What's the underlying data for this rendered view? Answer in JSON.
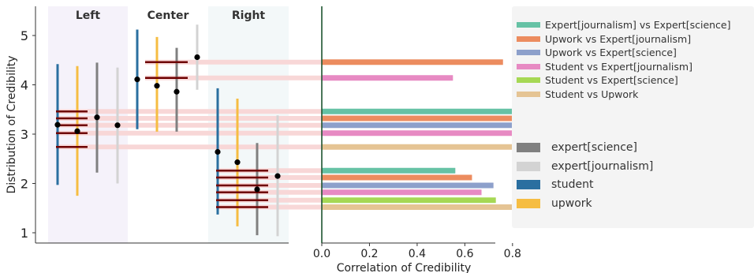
{
  "chart_data": {
    "left_panel": {
      "type": "range",
      "ylabel": "Distribution of Credibility",
      "yticks": [
        1,
        2,
        3,
        4,
        5
      ],
      "ylim": [
        0.8,
        5.4
      ],
      "groups": [
        {
          "label": "Left",
          "series": [
            {
              "name": "student",
              "min": 1.97,
              "max": 4.42,
              "mean": 3.19
            },
            {
              "name": "upwork",
              "min": 1.75,
              "max": 4.38,
              "mean": 3.06
            },
            {
              "name": "expert[science]",
              "min": 2.22,
              "max": 4.45,
              "mean": 3.34
            },
            {
              "name": "expert[journalism]",
              "min": 2.0,
              "max": 4.35,
              "mean": 3.18
            }
          ],
          "medians": [
            3.02,
            2.74,
            3.32,
            3.46,
            3.18
          ]
        },
        {
          "label": "Center",
          "series": [
            {
              "name": "student",
              "min": 3.1,
              "max": 5.12,
              "mean": 4.11
            },
            {
              "name": "upwork",
              "min": 3.05,
              "max": 4.97,
              "mean": 3.98
            },
            {
              "name": "expert[science]",
              "min": 3.05,
              "max": 4.75,
              "mean": 3.86
            },
            {
              "name": "expert[journalism]",
              "min": 3.9,
              "max": 5.22,
              "mean": 4.56
            }
          ],
          "medians": [
            4.46,
            4.14
          ]
        },
        {
          "label": "Right",
          "series": [
            {
              "name": "student",
              "min": 1.37,
              "max": 3.93,
              "mean": 2.64
            },
            {
              "name": "upwork",
              "min": 1.13,
              "max": 3.72,
              "mean": 2.43
            },
            {
              "name": "expert[science]",
              "min": 0.95,
              "max": 2.82,
              "mean": 1.88
            },
            {
              "name": "expert[journalism]",
              "min": 0.93,
              "max": 3.38,
              "mean": 2.15
            }
          ],
          "medians": [
            2.26,
            2.12,
            1.96,
            1.82,
            1.66,
            1.52
          ]
        }
      ]
    },
    "right_panel": {
      "type": "bar",
      "orientation": "horizontal",
      "xlabel": "Correlation of Credibility",
      "xticks": [
        0.0,
        0.2,
        0.4,
        0.6,
        0.8
      ],
      "xlim": [
        0.0,
        0.88
      ],
      "groups": [
        {
          "label": "Center",
          "bars": [
            {
              "name": "Upwork vs Expert[journalism]",
              "value": 0.76,
              "y": 4.46
            },
            {
              "name": "Student vs Expert[journalism]",
              "value": 0.55,
              "y": 4.14
            }
          ]
        },
        {
          "label": "Left",
          "bars": [
            {
              "name": "Expert[journalism] vs Expert[science]",
              "value": 0.85,
              "y": 3.46
            },
            {
              "name": "Upwork vs Expert[journalism]",
              "value": 0.855,
              "y": 3.32
            },
            {
              "name": "Upwork vs Expert[science]",
              "value": 0.86,
              "y": 3.18
            },
            {
              "name": "Student vs Expert[journalism]",
              "value": 0.84,
              "y": 3.02
            },
            {
              "name": "Student vs Upwork",
              "value": 0.8,
              "y": 2.74
            }
          ]
        },
        {
          "label": "Right",
          "bars": [
            {
              "name": "Expert[journalism] vs Expert[science]",
              "value": 0.56,
              "y": 2.26
            },
            {
              "name": "Upwork vs Expert[journalism]",
              "value": 0.63,
              "y": 2.12
            },
            {
              "name": "Upwork vs Expert[science]",
              "value": 0.72,
              "y": 1.96
            },
            {
              "name": "Student vs Expert[journalism]",
              "value": 0.67,
              "y": 1.82
            },
            {
              "name": "Student vs Expert[science]",
              "value": 0.73,
              "y": 1.66
            },
            {
              "name": "Student vs Upwork",
              "value": 0.88,
              "y": 1.52
            }
          ]
        }
      ]
    },
    "legend": {
      "placement": "right",
      "pairs": [
        {
          "label": "Expert[journalism] vs Expert[science]",
          "color": "#66c2a5"
        },
        {
          "label": "Upwork vs Expert[journalism]",
          "color": "#ec8c5f"
        },
        {
          "label": "Upwork vs Expert[science]",
          "color": "#8da0cb"
        },
        {
          "label": "Student vs Expert[journalism]",
          "color": "#e78ac3"
        },
        {
          "label": "Student vs Expert[science]",
          "color": "#a6d854"
        },
        {
          "label": "Student vs Upwork",
          "color": "#e5c494"
        }
      ],
      "raters": [
        {
          "label": "expert[science]",
          "color": "#808080"
        },
        {
          "label": "expert[journalism]",
          "color": "#d3d3d3"
        },
        {
          "label": "student",
          "color": "#2a6fa0"
        },
        {
          "label": "upwork",
          "color": "#f6bd42"
        }
      ]
    },
    "colors": {
      "student": "#2a6fa0",
      "upwork": "#f6bd42",
      "expert[science]": "#808080",
      "expert[journalism]": "#d3d3d3",
      "median_line": "#6e0000",
      "connector": "#f8d7d7",
      "zero_line": "#1e5530",
      "bg_left": "#f5f2fa",
      "bg_center": "#ffffff",
      "bg_right": "#f3f8f9"
    }
  }
}
